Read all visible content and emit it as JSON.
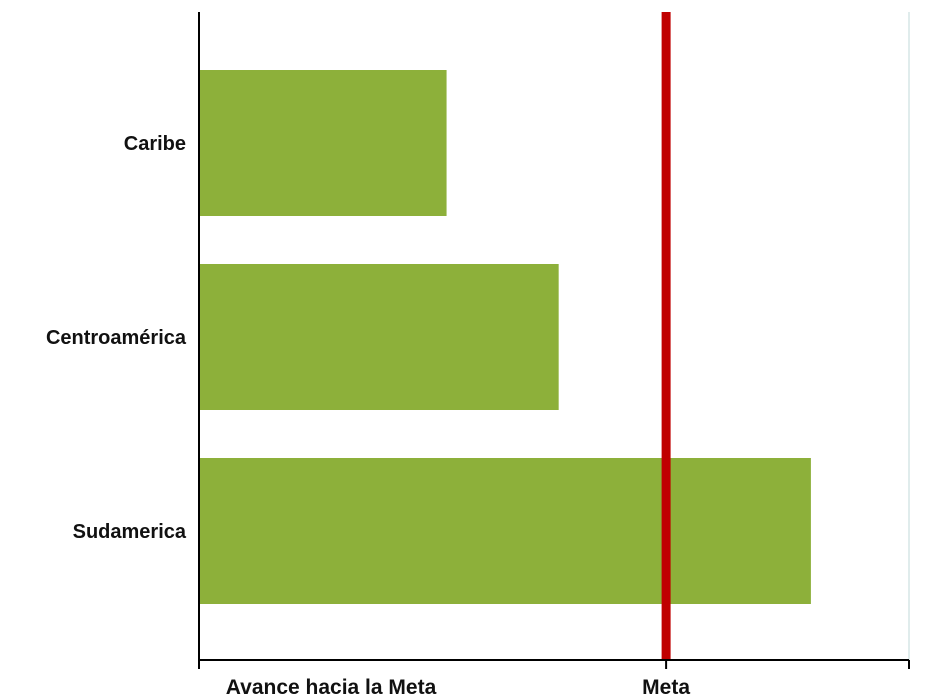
{
  "chart_data": {
    "type": "bar",
    "orientation": "horizontal",
    "categories": [
      "Caribe",
      "Centroamérica",
      "Sudamerica"
    ],
    "values": [
      0.53,
      0.77,
      1.31
    ],
    "xlim": [
      0,
      1.52
    ],
    "x_tick_values": [
      0,
      1,
      1.52
    ],
    "x_tick_labels": [
      "Avance hacia la Meta",
      "Meta",
      ""
    ],
    "reference_line": {
      "label": "Meta",
      "value": 1,
      "color": "#c00000"
    },
    "bar_color": "#8db03a",
    "grid": false,
    "legend": "none"
  }
}
